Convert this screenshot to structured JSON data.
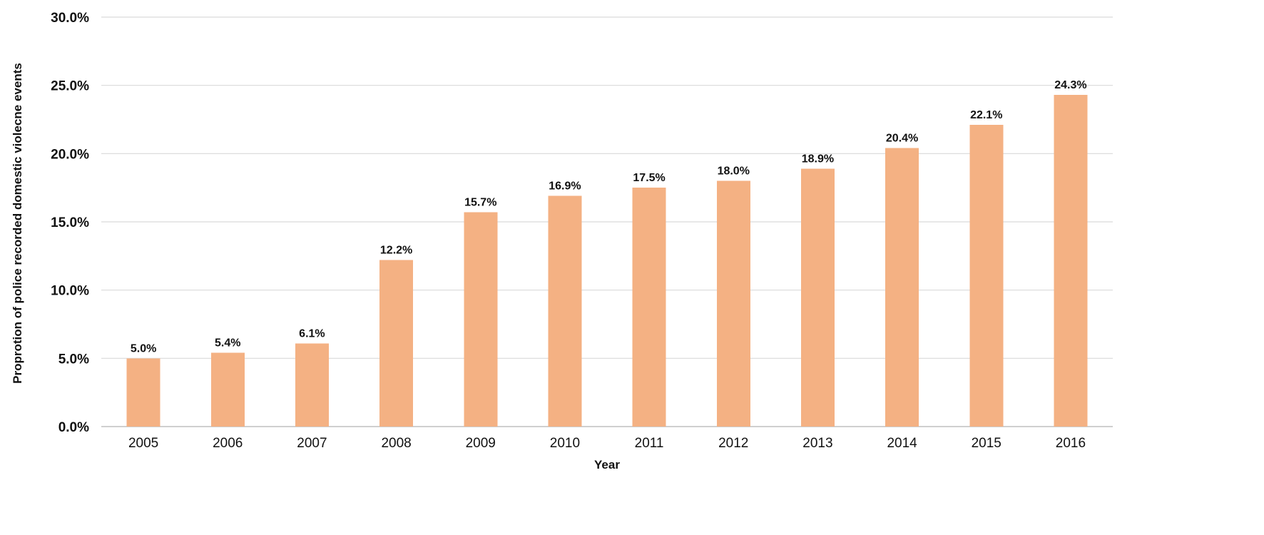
{
  "chart_data": {
    "type": "bar",
    "title": "",
    "xlabel": "Year",
    "ylabel": "Proprotion  of police recorded domestic violecne events",
    "categories": [
      "2005",
      "2006",
      "2007",
      "2008",
      "2009",
      "2010",
      "2011",
      "2012",
      "2013",
      "2014",
      "2015",
      "2016"
    ],
    "values": [
      5.0,
      5.4,
      6.1,
      12.2,
      15.7,
      16.9,
      17.5,
      18.0,
      18.9,
      20.4,
      22.1,
      24.3
    ],
    "data_labels": [
      "5.0%",
      "5.4%",
      "6.1%",
      "12.2%",
      "15.7%",
      "16.9%",
      "17.5%",
      "18.0%",
      "18.9%",
      "20.4%",
      "22.1%",
      "24.3%"
    ],
    "ylim": [
      0,
      30
    ],
    "yticks": [
      0,
      5,
      10,
      15,
      20,
      25,
      30
    ],
    "ytick_labels": [
      "0.0%",
      "5.0%",
      "10.0%",
      "15.0%",
      "20.0%",
      "25.0%",
      "30.0%"
    ],
    "grid": true,
    "legend": "none",
    "bar_color": "#f4b183"
  }
}
